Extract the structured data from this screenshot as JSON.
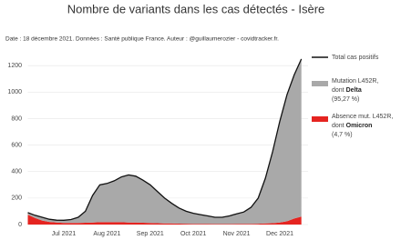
{
  "chart_data": {
    "type": "stacked_area_line",
    "title": "Nombre de variants dans les cas détectés - Isère",
    "subtitle": "Date : 18 décembre 2021. Données : Santé publique France. Auteur : @guillaumerozier - covidtracker.fr.",
    "categories": [
      null,
      null,
      null,
      null,
      null,
      "Jul 2021",
      null,
      null,
      null,
      null,
      null,
      "Aug 2021",
      null,
      null,
      null,
      null,
      null,
      "Sep 2021",
      null,
      null,
      null,
      null,
      null,
      "Oct 2021",
      null,
      null,
      null,
      null,
      null,
      "Nov 2021",
      null,
      null,
      null,
      null,
      null,
      "Dec 2021",
      null,
      null,
      null
    ],
    "ylim": [
      0,
      1270
    ],
    "yticks": [
      0,
      200,
      400,
      600,
      800,
      1000,
      1200
    ],
    "grid": true,
    "series": [
      {
        "name": [
          "Absence mut. L452R,",
          "dont",
          "Omicron",
          "(4,7 %)"
        ],
        "kind": "area",
        "color": "#e52420",
        "values": [
          75,
          50,
          30,
          20,
          15,
          12,
          12,
          12,
          14,
          16,
          18,
          18,
          18,
          18,
          16,
          15,
          14,
          12,
          10,
          9,
          8,
          7,
          6,
          5,
          5,
          5,
          4,
          4,
          4,
          5,
          5,
          5,
          6,
          8,
          10,
          15,
          25,
          45,
          60
        ]
      },
      {
        "name": [
          "Mutation L452R,",
          "dont",
          "Delta",
          "(95,27 %)"
        ],
        "kind": "area",
        "color": "#a9a9a9",
        "values": [
          15,
          20,
          25,
          20,
          18,
          20,
          26,
          43,
          86,
          204,
          282,
          292,
          312,
          342,
          359,
          350,
          321,
          288,
          240,
          191,
          152,
          118,
          94,
          80,
          70,
          60,
          51,
          51,
          61,
          75,
          90,
          125,
          194,
          342,
          540,
          765,
          955,
          1085,
          1190
        ]
      },
      {
        "name": [
          "Total cas positifs"
        ],
        "kind": "line",
        "color": "#111111",
        "values": [
          90,
          70,
          55,
          40,
          33,
          32,
          38,
          55,
          100,
          220,
          300,
          310,
          330,
          360,
          375,
          365,
          335,
          300,
          250,
          200,
          160,
          125,
          100,
          85,
          75,
          65,
          55,
          55,
          65,
          80,
          95,
          130,
          200,
          350,
          550,
          780,
          980,
          1130,
          1250
        ]
      }
    ]
  }
}
